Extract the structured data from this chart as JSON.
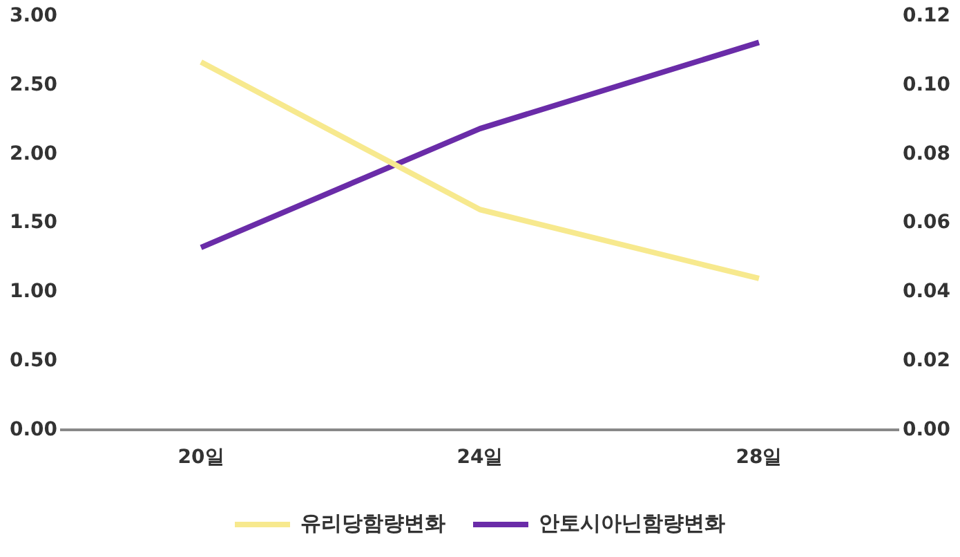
{
  "chart_data": {
    "type": "line",
    "categories": [
      "20일",
      "24일",
      "28일"
    ],
    "series": [
      {
        "name": "유리당함량변화",
        "color": "#f7e98e",
        "values": [
          2.67,
          1.6,
          1.1
        ]
      },
      {
        "name": "안토시아닌함량변화",
        "color": "#6a2ca8",
        "values": [
          0.053,
          0.0875,
          0.1125
        ],
        "axis": "y2"
      }
    ],
    "ylim": [
      0,
      3
    ],
    "yticks": [
      {
        "value": 0,
        "label": "0.00"
      },
      {
        "value": 0.5,
        "label": "0.50"
      },
      {
        "value": 1,
        "label": "1.00"
      },
      {
        "value": 1.5,
        "label": "1.50"
      },
      {
        "value": 2,
        "label": "2.00"
      },
      {
        "value": 2.5,
        "label": "2.50"
      },
      {
        "value": 3,
        "label": "3.00"
      }
    ],
    "y2lim": [
      0,
      0.12
    ],
    "y2ticks": [
      {
        "value": 0,
        "label": "0.00"
      },
      {
        "value": 0.02,
        "label": "0.02"
      },
      {
        "value": 0.04,
        "label": "0.04"
      },
      {
        "value": 0.06,
        "label": "0.06"
      },
      {
        "value": 0.08,
        "label": "0.08"
      },
      {
        "value": 0.1,
        "label": "0.10"
      },
      {
        "value": 0.12,
        "label": "0.12"
      }
    ],
    "legend": "bottom",
    "marker": "none",
    "line_style": "solid"
  }
}
